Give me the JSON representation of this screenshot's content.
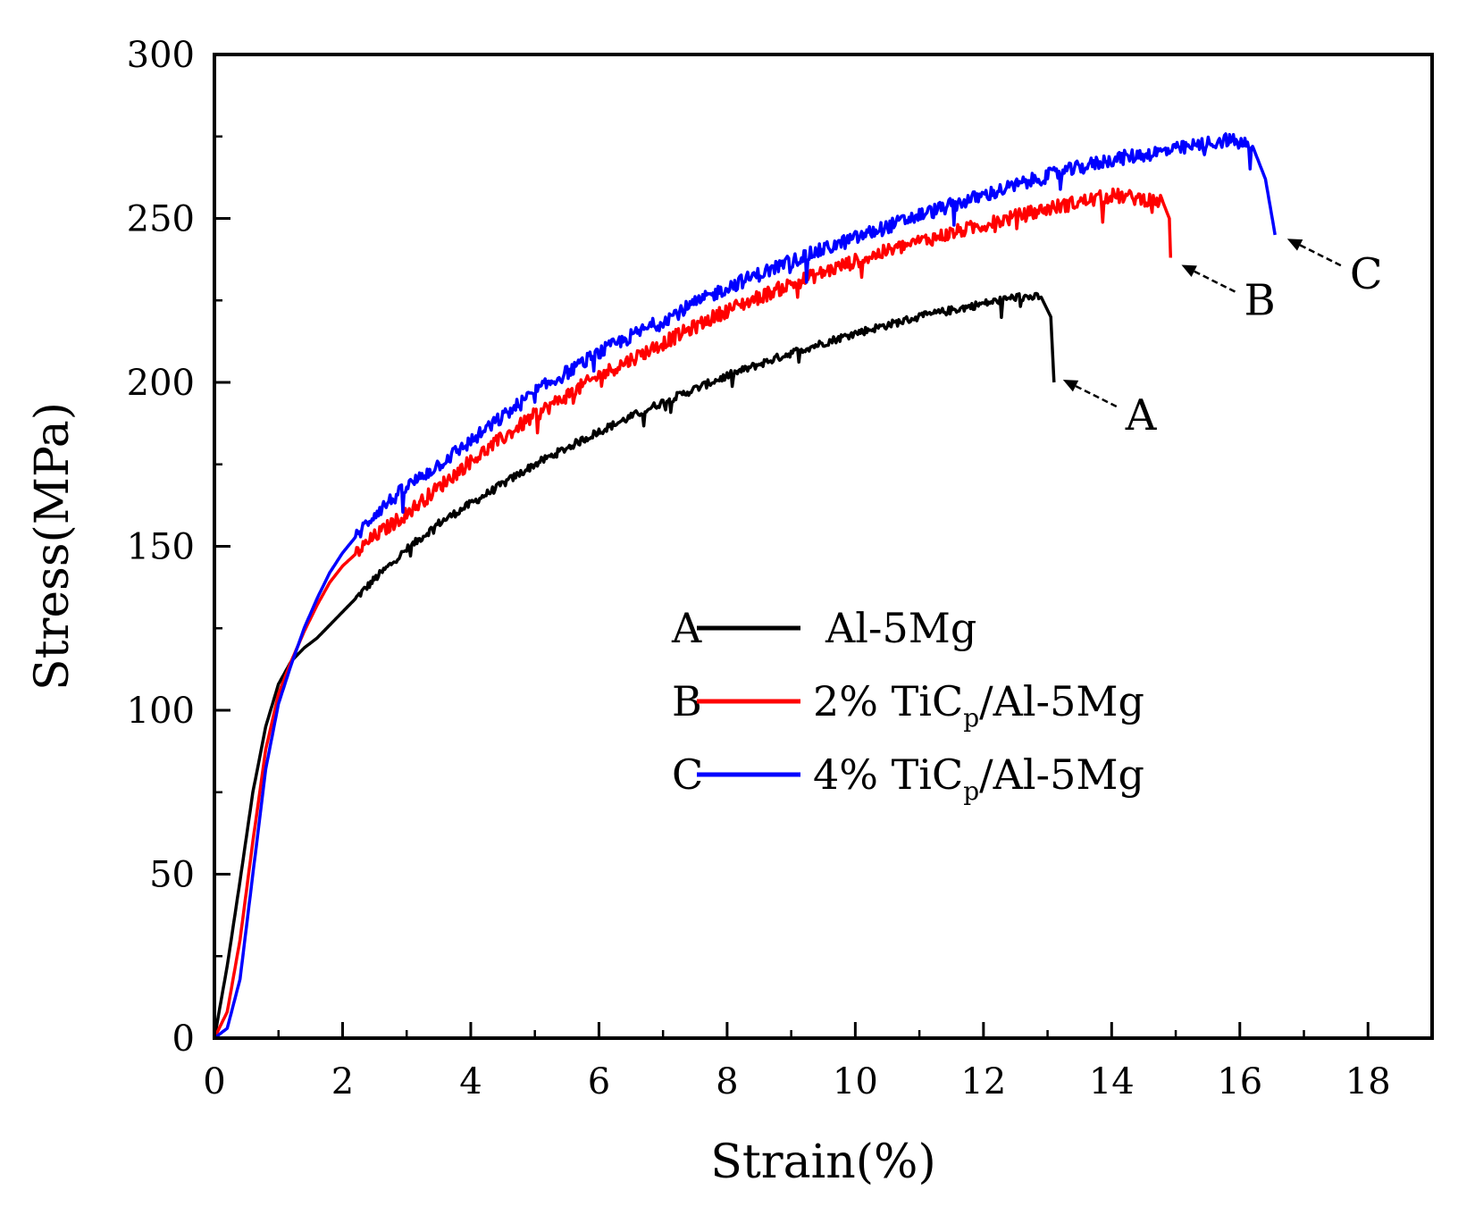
{
  "chart_data": {
    "type": "line",
    "title": "",
    "xlabel": "Strain(%)",
    "ylabel": "Stress(MPa)",
    "xlim": [
      0,
      19
    ],
    "ylim": [
      0,
      300
    ],
    "x_ticks": [
      0,
      2,
      4,
      6,
      8,
      10,
      12,
      14,
      16,
      18
    ],
    "x_tick_labels": [
      "0",
      "2",
      "4",
      "6",
      "8",
      "10",
      "12",
      "14",
      "16",
      "18"
    ],
    "y_ticks": [
      0,
      50,
      100,
      150,
      200,
      250,
      300
    ],
    "y_tick_labels": [
      "0",
      "50",
      "100",
      "150",
      "200",
      "250",
      "300"
    ],
    "grid": false,
    "legend_position": "center-right",
    "series": [
      {
        "id": "A",
        "name": "Al-5Mg",
        "color": "#000000",
        "x": [
          0,
          0.2,
          0.4,
          0.6,
          0.8,
          1.0,
          1.2,
          1.4,
          1.6,
          2.0,
          2.5,
          3.0,
          3.5,
          4.0,
          5.0,
          6.0,
          7.0,
          8.0,
          9.0,
          10.0,
          11.0,
          12.0,
          12.5,
          12.9,
          13.05,
          13.1
        ],
        "y": [
          0,
          22,
          48,
          75,
          95,
          108,
          115,
          119,
          122,
          130,
          140,
          149,
          157,
          163,
          175,
          185,
          194,
          202,
          209,
          215,
          220,
          224,
          226,
          226,
          220,
          200
        ]
      },
      {
        "id": "B",
        "name": "2% TiCp/Al-5Mg",
        "sub": "p",
        "color": "#ff0000",
        "x": [
          0,
          0.2,
          0.4,
          0.6,
          0.8,
          1.0,
          1.2,
          1.4,
          1.6,
          1.8,
          2.0,
          2.5,
          3.0,
          3.5,
          4.0,
          5.0,
          6.0,
          7.0,
          8.0,
          9.0,
          10.0,
          11.0,
          12.0,
          13.0,
          14.0,
          14.5,
          14.8,
          14.9,
          14.92
        ],
        "y": [
          0,
          8,
          30,
          60,
          88,
          105,
          115,
          124,
          132,
          139,
          144,
          153,
          160,
          168,
          176,
          190,
          202,
          212,
          222,
          230,
          237,
          243,
          248,
          253,
          257,
          256,
          255,
          250,
          238
        ]
      },
      {
        "id": "C",
        "name": "4% TiCp/Al-5Mg",
        "sub": "p",
        "color": "#0000ff",
        "x": [
          0,
          0.2,
          0.4,
          0.6,
          0.8,
          1.0,
          1.2,
          1.4,
          1.6,
          1.8,
          2.0,
          2.5,
          3.0,
          3.5,
          4.0,
          5.0,
          6.0,
          7.0,
          8.0,
          9.0,
          10.0,
          11.0,
          12.0,
          13.0,
          14.0,
          15.0,
          15.8,
          16.2,
          16.4,
          16.55
        ],
        "y": [
          0,
          3,
          18,
          50,
          82,
          102,
          114,
          125,
          134,
          142,
          148,
          160,
          168,
          175,
          182,
          197,
          209,
          219,
          229,
          237,
          244,
          251,
          257,
          263,
          268,
          271,
          274,
          272,
          262,
          245
        ]
      }
    ],
    "legend": [
      {
        "letter": "A",
        "label": "Al-5Mg",
        "pre": "",
        "sub": "",
        "post": ""
      },
      {
        "letter": "B",
        "label": "2% TiCp/Al-5Mg",
        "pre": "2% TiC",
        "sub": "p",
        "post": "/Al-5Mg"
      },
      {
        "letter": "C",
        "label": "4% TiCp/Al-5Mg",
        "pre": "4% TiC",
        "sub": "p",
        "post": "/Al-5Mg"
      }
    ],
    "annotations": [
      {
        "text": "A",
        "points_to": [
          13.1,
          203
        ]
      },
      {
        "text": "B",
        "points_to": [
          14.95,
          238
        ]
      },
      {
        "text": "C",
        "points_to": [
          16.6,
          246
        ]
      }
    ]
  }
}
